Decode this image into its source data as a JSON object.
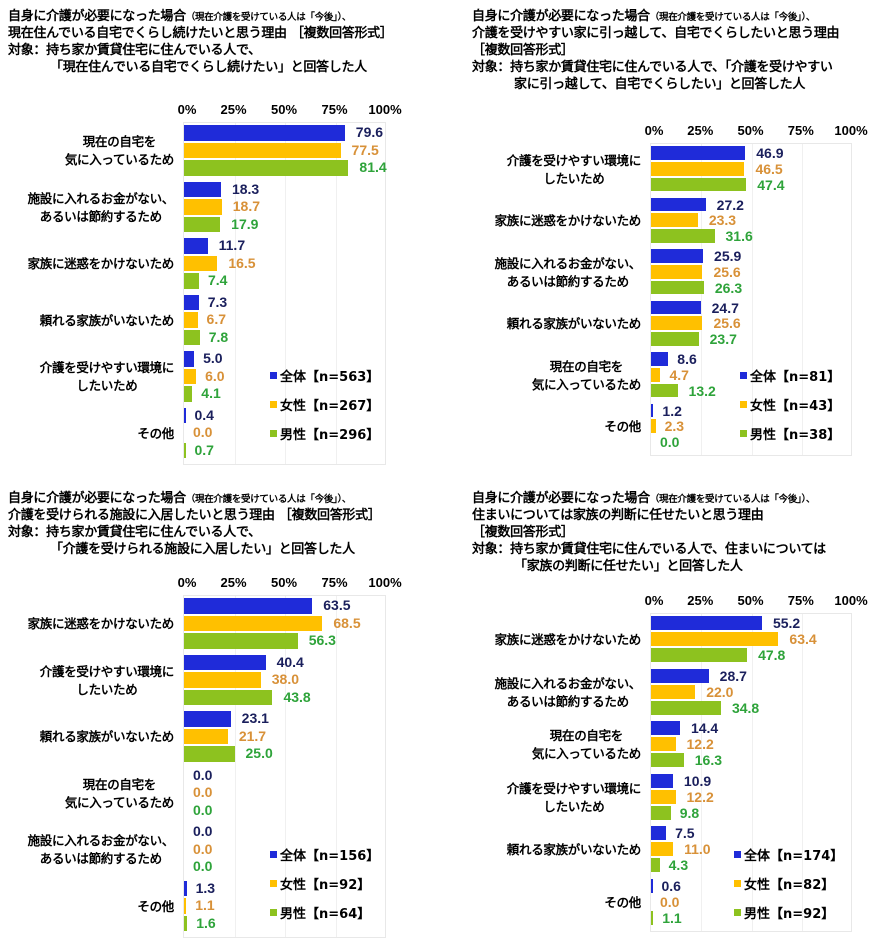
{
  "colors": {
    "all_bar": "#1f2bd9",
    "female_bar": "#ffc000",
    "male_bar": "#8dc21f",
    "all_text": "#1a1f5c",
    "female_text": "#d89138",
    "male_text": "#2ea33a"
  },
  "axis_ticks": [
    "0%",
    "25%",
    "50%",
    "75%",
    "100%"
  ],
  "charts": [
    {
      "title_lines": [
        {
          "main": "自身に介護が必要になった場合",
          "small": "（現在介護を受けている人は「今後」）、"
        },
        {
          "main": "現在住んでいる自宅でくらし続けたいと思う理由 ［複数回答形式］"
        },
        {
          "main": "対象：持ち家か賃貸住宅に住んでいる人で、"
        },
        {
          "main": "「現在住んでいる自宅でくらし続けたい」と回答した人",
          "indent": true
        }
      ],
      "legend": [
        "全体【n=563】",
        "女性【n=267】",
        "男性【n=296】"
      ],
      "categories": [
        {
          "label": [
            "現在の自宅を",
            "気に入っているため"
          ],
          "values": [
            "79.6",
            "77.5",
            "81.4"
          ]
        },
        {
          "label": [
            "施設に入れるお金がない、",
            "あるいは節約するため"
          ],
          "values": [
            "18.3",
            "18.7",
            "17.9"
          ]
        },
        {
          "label": [
            "家族に迷惑をかけないため"
          ],
          "values": [
            "11.7",
            "16.5",
            "7.4"
          ]
        },
        {
          "label": [
            "頼れる家族がいないため"
          ],
          "values": [
            "7.3",
            "6.7",
            "7.8"
          ]
        },
        {
          "label": [
            "介護を受けやすい環境に",
            "したいため"
          ],
          "values": [
            "5.0",
            "6.0",
            "4.1"
          ]
        },
        {
          "label": [
            "その他"
          ],
          "values": [
            "0.4",
            "0.0",
            "0.7"
          ]
        }
      ]
    },
    {
      "title_lines": [
        {
          "main": "自身に介護が必要になった場合",
          "small": "（現在介護を受けている人は「今後」）、"
        },
        {
          "main": "介護を受けやすい家に引っ越して、自宅でくらしたいと思う理由"
        },
        {
          "main": "［複数回答形式］"
        },
        {
          "main": "対象：持ち家か賃貸住宅に住んでいる人で、「介護を受けやすい"
        },
        {
          "main": "家に引っ越して、自宅でくらしたい」と回答した人",
          "indent": true
        }
      ],
      "legend": [
        "全体【n=81】",
        "女性【n=43】",
        "男性【n=38】"
      ],
      "categories": [
        {
          "label": [
            "介護を受けやすい環境に",
            "したいため"
          ],
          "values": [
            "46.9",
            "46.5",
            "47.4"
          ]
        },
        {
          "label": [
            "家族に迷惑をかけないため"
          ],
          "values": [
            "27.2",
            "23.3",
            "31.6"
          ]
        },
        {
          "label": [
            "施設に入れるお金がない、",
            "あるいは節約するため"
          ],
          "values": [
            "25.9",
            "25.6",
            "26.3"
          ]
        },
        {
          "label": [
            "頼れる家族がいないため"
          ],
          "values": [
            "24.7",
            "25.6",
            "23.7"
          ]
        },
        {
          "label": [
            "現在の自宅を",
            "気に入っているため"
          ],
          "values": [
            "8.6",
            "4.7",
            "13.2"
          ]
        },
        {
          "label": [
            "その他"
          ],
          "values": [
            "1.2",
            "2.3",
            "0.0"
          ]
        }
      ]
    },
    {
      "title_lines": [
        {
          "main": "自身に介護が必要になった場合",
          "small": "（現在介護を受けている人は「今後」）、"
        },
        {
          "main": "介護を受けられる施設に入居したいと思う理由 ［複数回答形式］"
        },
        {
          "main": "対象：持ち家か賃貸住宅に住んでいる人で、"
        },
        {
          "main": "「介護を受けられる施設に入居したい」と回答した人",
          "indent": true
        }
      ],
      "legend": [
        "全体【n=156】",
        "女性【n=92】",
        "男性【n=64】"
      ],
      "categories": [
        {
          "label": [
            "家族に迷惑をかけないため"
          ],
          "values": [
            "63.5",
            "68.5",
            "56.3"
          ]
        },
        {
          "label": [
            "介護を受けやすい環境に",
            "したいため"
          ],
          "values": [
            "40.4",
            "38.0",
            "43.8"
          ]
        },
        {
          "label": [
            "頼れる家族がいないため"
          ],
          "values": [
            "23.1",
            "21.7",
            "25.0"
          ]
        },
        {
          "label": [
            "現在の自宅を",
            "気に入っているため"
          ],
          "values": [
            "0.0",
            "0.0",
            "0.0"
          ]
        },
        {
          "label": [
            "施設に入れるお金がない、",
            "あるいは節約するため"
          ],
          "values": [
            "0.0",
            "0.0",
            "0.0"
          ]
        },
        {
          "label": [
            "その他"
          ],
          "values": [
            "1.3",
            "1.1",
            "1.6"
          ]
        }
      ]
    },
    {
      "title_lines": [
        {
          "main": "自身に介護が必要になった場合",
          "small": "（現在介護を受けている人は「今後」）、"
        },
        {
          "main": "住まいについては家族の判断に任せたいと思う理由"
        },
        {
          "main": "［複数回答形式］"
        },
        {
          "main": "対象：持ち家か賃貸住宅に住んでいる人で、住まいについては"
        },
        {
          "main": "「家族の判断に任せたい」と回答した人",
          "indent": true
        }
      ],
      "legend": [
        "全体【n=174】",
        "女性【n=82】",
        "男性【n=92】"
      ],
      "categories": [
        {
          "label": [
            "家族に迷惑をかけないため"
          ],
          "values": [
            "55.2",
            "63.4",
            "47.8"
          ]
        },
        {
          "label": [
            "施設に入れるお金がない、",
            "あるいは節約するため"
          ],
          "values": [
            "28.7",
            "22.0",
            "34.8"
          ]
        },
        {
          "label": [
            "現在の自宅を",
            "気に入っているため"
          ],
          "values": [
            "14.4",
            "12.2",
            "16.3"
          ]
        },
        {
          "label": [
            "介護を受けやすい環境に",
            "したいため"
          ],
          "values": [
            "10.9",
            "12.2",
            "9.8"
          ]
        },
        {
          "label": [
            "頼れる家族がいないため"
          ],
          "values": [
            "7.5",
            "11.0",
            "4.3"
          ]
        },
        {
          "label": [
            "その他"
          ],
          "values": [
            "0.6",
            "0.0",
            "1.1"
          ]
        }
      ]
    }
  ],
  "chart_data": [
    {
      "type": "bar",
      "orientation": "horizontal",
      "title": "自身に介護が必要になった場合（現在介護を受けている人は「今後」）、現在住んでいる自宅でくらし続けたいと思う理由 ［複数回答形式］ 対象：持ち家か賃貸住宅に住んでいる人で、「現在住んでいる自宅でくらし続けたい」と回答した人",
      "categories": [
        "現在の自宅を気に入っているため",
        "施設に入れるお金がない、あるいは節約するため",
        "家族に迷惑をかけないため",
        "頼れる家族がいないため",
        "介護を受けやすい環境にしたいため",
        "その他"
      ],
      "series": [
        {
          "name": "全体【n=563】",
          "values": [
            79.6,
            18.3,
            11.7,
            7.3,
            5.0,
            0.4
          ]
        },
        {
          "name": "女性【n=267】",
          "values": [
            77.5,
            18.7,
            16.5,
            6.7,
            6.0,
            0.0
          ]
        },
        {
          "name": "男性【n=296】",
          "values": [
            81.4,
            17.9,
            7.4,
            7.8,
            4.1,
            0.7
          ]
        }
      ],
      "xlabel": "",
      "ylabel": "",
      "xlim": [
        0,
        100
      ],
      "xticks": [
        "0%",
        "25%",
        "50%",
        "75%",
        "100%"
      ],
      "legend_position": "lower right",
      "grid": true
    },
    {
      "type": "bar",
      "orientation": "horizontal",
      "title": "自身に介護が必要になった場合（現在介護を受けている人は「今後」）、介護を受けやすい家に引っ越して、自宅でくらしたいと思う理由 ［複数回答形式］ 対象：持ち家か賃貸住宅に住んでいる人で、「介護を受けやすい家に引っ越して、自宅でくらしたい」と回答した人",
      "categories": [
        "介護を受けやすい環境にしたいため",
        "家族に迷惑をかけないため",
        "施設に入れるお金がない、あるいは節約するため",
        "頼れる家族がいないため",
        "現在の自宅を気に入っているため",
        "その他"
      ],
      "series": [
        {
          "name": "全体【n=81】",
          "values": [
            46.9,
            27.2,
            25.9,
            24.7,
            8.6,
            1.2
          ]
        },
        {
          "name": "女性【n=43】",
          "values": [
            46.5,
            23.3,
            25.6,
            25.6,
            4.7,
            2.3
          ]
        },
        {
          "name": "男性【n=38】",
          "values": [
            47.4,
            31.6,
            26.3,
            23.7,
            13.2,
            0.0
          ]
        }
      ],
      "xlabel": "",
      "ylabel": "",
      "xlim": [
        0,
        100
      ],
      "xticks": [
        "0%",
        "25%",
        "50%",
        "75%",
        "100%"
      ],
      "legend_position": "lower right",
      "grid": true
    },
    {
      "type": "bar",
      "orientation": "horizontal",
      "title": "自身に介護が必要になった場合（現在介護を受けている人は「今後」）、介護を受けられる施設に入居したいと思う理由 ［複数回答形式］ 対象：持ち家か賃貸住宅に住んでいる人で、「介護を受けられる施設に入居したい」と回答した人",
      "categories": [
        "家族に迷惑をかけないため",
        "介護を受けやすい環境にしたいため",
        "頼れる家族がいないため",
        "現在の自宅を気に入っているため",
        "施設に入れるお金がない、あるいは節約するため",
        "その他"
      ],
      "series": [
        {
          "name": "全体【n=156】",
          "values": [
            63.5,
            40.4,
            23.1,
            0.0,
            0.0,
            1.3
          ]
        },
        {
          "name": "女性【n=92】",
          "values": [
            68.5,
            38.0,
            21.7,
            0.0,
            0.0,
            1.1
          ]
        },
        {
          "name": "男性【n=64】",
          "values": [
            56.3,
            43.8,
            25.0,
            0.0,
            0.0,
            1.6
          ]
        }
      ],
      "xlabel": "",
      "ylabel": "",
      "xlim": [
        0,
        100
      ],
      "xticks": [
        "0%",
        "25%",
        "50%",
        "75%",
        "100%"
      ],
      "legend_position": "lower right",
      "grid": true
    },
    {
      "type": "bar",
      "orientation": "horizontal",
      "title": "自身に介護が必要になった場合（現在介護を受けている人は「今後」）、住まいについては家族の判断に任せたいと思う理由 ［複数回答形式］ 対象：持ち家か賃貸住宅に住んでいる人で、住まいについては「家族の判断に任せたい」と回答した人",
      "categories": [
        "家族に迷惑をかけないため",
        "施設に入れるお金がない、あるいは節約するため",
        "現在の自宅を気に入っているため",
        "介護を受けやすい環境にしたいため",
        "頼れる家族がいないため",
        "その他"
      ],
      "series": [
        {
          "name": "全体【n=174】",
          "values": [
            55.2,
            28.7,
            14.4,
            10.9,
            7.5,
            0.6
          ]
        },
        {
          "name": "女性【n=82】",
          "values": [
            63.4,
            22.0,
            12.2,
            12.2,
            11.0,
            0.0
          ]
        },
        {
          "name": "男性【n=92】",
          "values": [
            47.8,
            34.8,
            16.3,
            9.8,
            4.3,
            1.1
          ]
        }
      ],
      "xlabel": "",
      "ylabel": "",
      "xlim": [
        0,
        100
      ],
      "xticks": [
        "0%",
        "25%",
        "50%",
        "75%",
        "100%"
      ],
      "legend_position": "lower right",
      "grid": true
    }
  ]
}
